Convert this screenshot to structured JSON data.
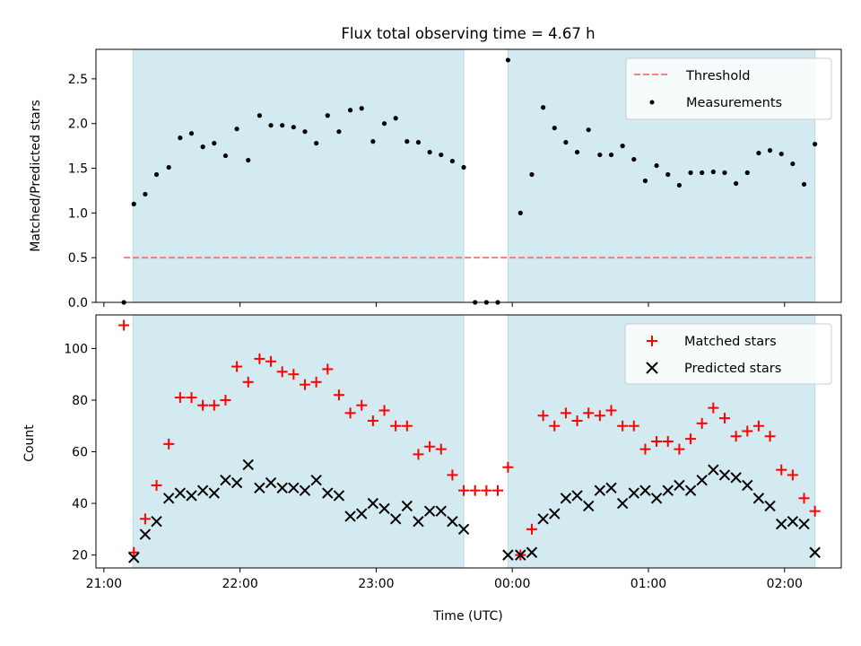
{
  "chart_data": {
    "type": "scatter",
    "title": "Flux total observing time = 4.67 h",
    "xlabel": "Time (UTC)",
    "x_unit": "minutes after 21:00 UTC",
    "xlim": [
      -3.5,
      325
    ],
    "x_ticks": [
      {
        "value": 0,
        "label": "21:00"
      },
      {
        "value": 60,
        "label": "22:00"
      },
      {
        "value": 120,
        "label": "23:00"
      },
      {
        "value": 180,
        "label": "00:00"
      },
      {
        "value": 240,
        "label": "01:00"
      },
      {
        "value": 300,
        "label": "02:00"
      }
    ],
    "shaded_intervals": [
      [
        12.8,
        158.6
      ],
      [
        178.1,
        313.4
      ]
    ],
    "shade_color": "#d3eaf0",
    "top_panel": {
      "ylabel": "Matched/Predicted stars",
      "ylim": [
        0,
        2.83
      ],
      "y_ticks": [
        "0.0",
        "0.5",
        "1.0",
        "1.5",
        "2.0",
        "2.5"
      ],
      "legend_position": "top-right",
      "threshold": {
        "name": "Threshold",
        "value": 0.5,
        "x_range": [
          8.8,
          313.4
        ],
        "color": "#ff7070"
      },
      "measurements": {
        "name": "Measurements",
        "color": "#000000",
        "x": [
          8.8,
          13.2,
          18.2,
          23.2,
          28.6,
          33.6,
          38.6,
          43.6,
          48.6,
          53.6,
          58.6,
          63.6,
          68.6,
          73.6,
          78.6,
          83.6,
          88.6,
          93.6,
          98.6,
          103.6,
          108.6,
          113.6,
          118.6,
          123.6,
          128.6,
          133.6,
          138.6,
          143.6,
          148.6,
          153.6,
          158.6,
          163.6,
          168.6,
          173.6,
          178.1,
          183.6,
          188.6,
          193.6,
          198.6,
          203.6,
          208.6,
          213.6,
          218.6,
          223.6,
          228.6,
          233.6,
          238.6,
          243.6,
          248.6,
          253.6,
          258.6,
          263.6,
          268.6,
          273.6,
          278.6,
          283.6,
          288.6,
          293.6,
          298.6,
          303.6,
          308.6,
          313.4
        ],
        "y": [
          0.0,
          1.1,
          1.21,
          1.43,
          1.51,
          1.84,
          1.89,
          1.74,
          1.78,
          1.64,
          1.94,
          1.59,
          2.09,
          1.98,
          1.98,
          1.96,
          1.91,
          1.78,
          2.09,
          1.91,
          2.15,
          2.17,
          1.8,
          2.0,
          2.06,
          1.8,
          1.79,
          1.68,
          1.65,
          1.58,
          1.51,
          0.0,
          0.0,
          0.0,
          2.71,
          1.0,
          1.43,
          2.18,
          1.95,
          1.79,
          1.68,
          1.93,
          1.65,
          1.65,
          1.75,
          1.6,
          1.36,
          1.53,
          1.43,
          1.31,
          1.45,
          1.45,
          1.46,
          1.45,
          1.33,
          1.45,
          1.67,
          1.7,
          1.66,
          1.55,
          1.32,
          1.77
        ]
      }
    },
    "bottom_panel": {
      "ylabel": "Count",
      "ylim": [
        15,
        113
      ],
      "y_ticks": [
        "20",
        "40",
        "60",
        "80",
        "100"
      ],
      "legend_position": "top-right",
      "series": [
        {
          "name": "Matched stars",
          "marker": "plus",
          "color": "#ff0000",
          "x": [
            8.8,
            13.2,
            18.2,
            23.2,
            28.6,
            33.6,
            38.6,
            43.6,
            48.6,
            53.6,
            58.6,
            63.6,
            68.6,
            73.6,
            78.6,
            83.6,
            88.6,
            93.6,
            98.6,
            103.6,
            108.6,
            113.6,
            118.6,
            123.6,
            128.6,
            133.6,
            138.6,
            143.6,
            148.6,
            153.6,
            158.6,
            163.6,
            168.6,
            173.6,
            178.1,
            183.6,
            188.6,
            193.6,
            198.6,
            203.6,
            208.6,
            213.6,
            218.6,
            223.6,
            228.6,
            233.6,
            238.6,
            243.6,
            248.6,
            253.6,
            258.6,
            263.6,
            268.6,
            273.6,
            278.6,
            283.6,
            288.6,
            293.6,
            298.6,
            303.6,
            308.6,
            313.4
          ],
          "y": [
            109,
            21,
            34,
            47,
            63,
            81,
            81,
            78,
            78,
            80,
            93,
            87,
            96,
            95,
            91,
            90,
            86,
            87,
            92,
            82,
            75,
            78,
            72,
            76,
            70,
            70,
            59,
            62,
            61,
            51,
            45,
            45,
            45,
            45,
            54,
            20,
            30,
            74,
            70,
            75,
            72,
            75,
            74,
            76,
            70,
            70,
            61,
            64,
            64,
            61,
            65,
            71,
            77,
            73,
            66,
            68,
            70,
            66,
            53,
            51,
            42,
            37
          ]
        },
        {
          "name": "Predicted stars",
          "marker": "x",
          "color": "#000000",
          "x": [
            13.2,
            18.2,
            23.2,
            28.6,
            33.6,
            38.6,
            43.6,
            48.6,
            53.6,
            58.6,
            63.6,
            68.6,
            73.6,
            78.6,
            83.6,
            88.6,
            93.6,
            98.6,
            103.6,
            108.6,
            113.6,
            118.6,
            123.6,
            128.6,
            133.6,
            138.6,
            143.6,
            148.6,
            153.6,
            158.6,
            178.1,
            183.6,
            188.6,
            193.6,
            198.6,
            203.6,
            208.6,
            213.6,
            218.6,
            223.6,
            228.6,
            233.6,
            238.6,
            243.6,
            248.6,
            253.6,
            258.6,
            263.6,
            268.6,
            273.6,
            278.6,
            283.6,
            288.6,
            293.6,
            298.6,
            303.6,
            308.6,
            313.4
          ],
          "y": [
            19,
            28,
            33,
            42,
            44,
            43,
            45,
            44,
            49,
            48,
            55,
            46,
            48,
            46,
            46,
            45,
            49,
            44,
            43,
            35,
            36,
            40,
            38,
            34,
            39,
            33,
            37,
            37,
            33,
            30,
            20,
            20,
            21,
            34,
            36,
            42,
            43,
            39,
            45,
            46,
            40,
            44,
            45,
            42,
            45,
            47,
            45,
            49,
            53,
            51,
            50,
            47,
            42,
            39,
            32,
            33,
            32,
            21
          ]
        }
      ]
    }
  }
}
